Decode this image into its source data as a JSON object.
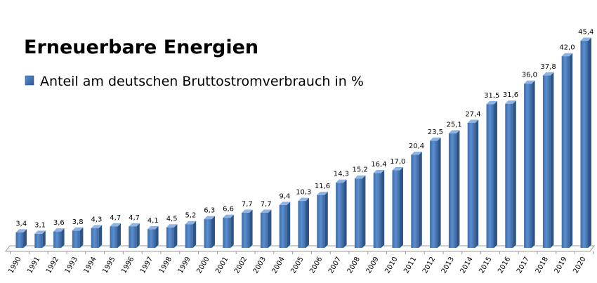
{
  "chart_data": {
    "type": "bar",
    "title": "Erneuerbare Energien",
    "categories": [
      "1990",
      "1991",
      "1992",
      "1993",
      "1994",
      "1995",
      "1996",
      "1997",
      "1998",
      "1999",
      "2000",
      "2001",
      "2002",
      "2003",
      "2004",
      "2005",
      "2006",
      "2007",
      "2008",
      "2009",
      "2010",
      "2011",
      "2012",
      "2013",
      "2014",
      "2015",
      "2016",
      "2017",
      "2018",
      "2019",
      "2020"
    ],
    "series": [
      {
        "name": "Anteil am deutschen Bruttostromverbrauch in %",
        "values": [
          3.4,
          3.1,
          3.6,
          3.8,
          4.3,
          4.7,
          4.7,
          4.1,
          4.5,
          5.2,
          6.3,
          6.6,
          7.7,
          7.7,
          9.4,
          10.3,
          11.6,
          14.3,
          15.2,
          16.4,
          17.0,
          20.4,
          23.5,
          25.1,
          27.4,
          31.5,
          31.6,
          36.0,
          37.8,
          42.0,
          45.4
        ],
        "labels": [
          "3,4",
          "3,1",
          "3,6",
          "3,8",
          "4,3",
          "4,7",
          "4,7",
          "4,1",
          "4,5",
          "5,2",
          "6,3",
          "6,6",
          "7,7",
          "7,7",
          "9,4",
          "10,3",
          "11,6",
          "14,3",
          "15,2",
          "16,4",
          "17,0",
          "20,4",
          "23,5",
          "25,1",
          "27,4",
          "31,5",
          "31,6",
          "36,0",
          "37,8",
          "42,0",
          "45,4"
        ],
        "color": "#4a7ebb"
      }
    ],
    "xlabel": "",
    "ylabel": "",
    "ylim": [
      0,
      45.4
    ],
    "grid": false,
    "legend_position": "top-left",
    "style": "3d-columns"
  }
}
